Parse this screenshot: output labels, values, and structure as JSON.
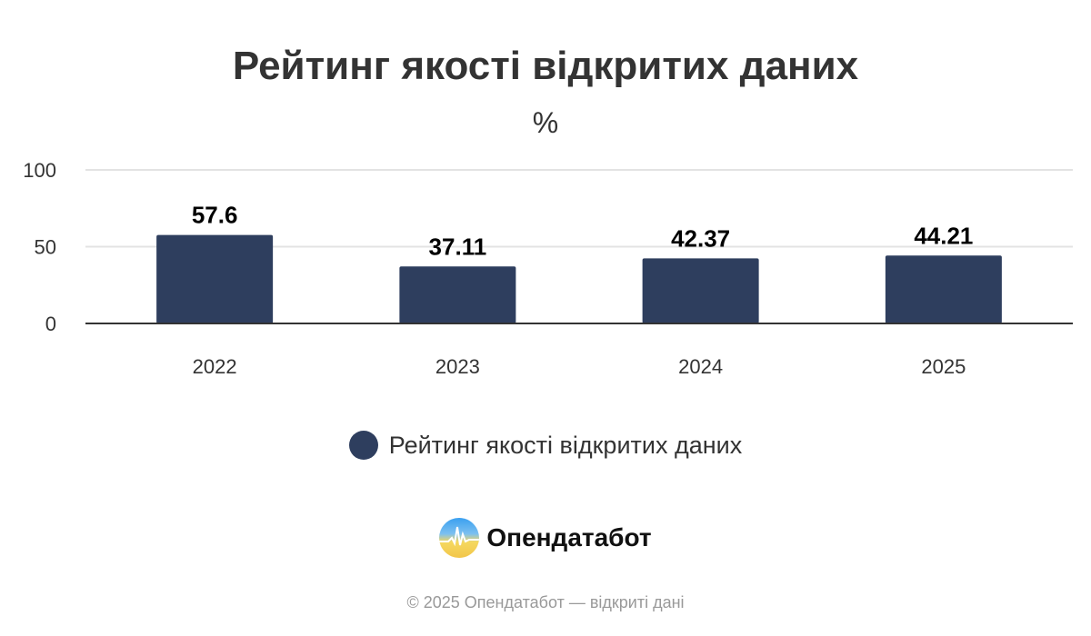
{
  "chart_data": {
    "type": "bar",
    "title": "Рейтинг якості відкритих даних",
    "subtitle": "%",
    "categories": [
      "2022",
      "2023",
      "2024",
      "2025"
    ],
    "series": [
      {
        "name": "Рейтинг якості відкритих даних",
        "values": [
          57.6,
          37.11,
          42.37,
          44.21
        ],
        "color": "#2e3e5e"
      }
    ],
    "data_labels": [
      "57.6",
      "37.11",
      "42.37",
      "44.21"
    ],
    "yticks": [
      "0",
      "50",
      "100"
    ],
    "ylim": [
      0,
      100
    ],
    "grid": true,
    "legend": "bottom-center"
  },
  "branding": {
    "name": "Опендатабот",
    "logo_icon": "opendatabot-logo"
  },
  "footer": "© 2025 Опендатабот — відкриті дані"
}
